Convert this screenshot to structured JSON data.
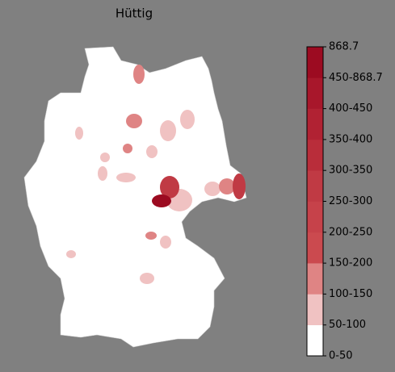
{
  "title": "Hüttig",
  "colorbar": {
    "ticks": [
      "0-50",
      "50-100",
      "100-150",
      "150-200",
      "200-250",
      "250-300",
      "300-350",
      "350-400",
      "400-450",
      "450-868.7",
      "868.7"
    ],
    "colors": [
      "#ffffff",
      "#f0c2c2",
      "#df8484",
      "#cb4a4f",
      "#c6424a",
      "#c03a44",
      "#b92d3a",
      "#b12233",
      "#a8172b",
      "#9c0b21"
    ]
  }
}
